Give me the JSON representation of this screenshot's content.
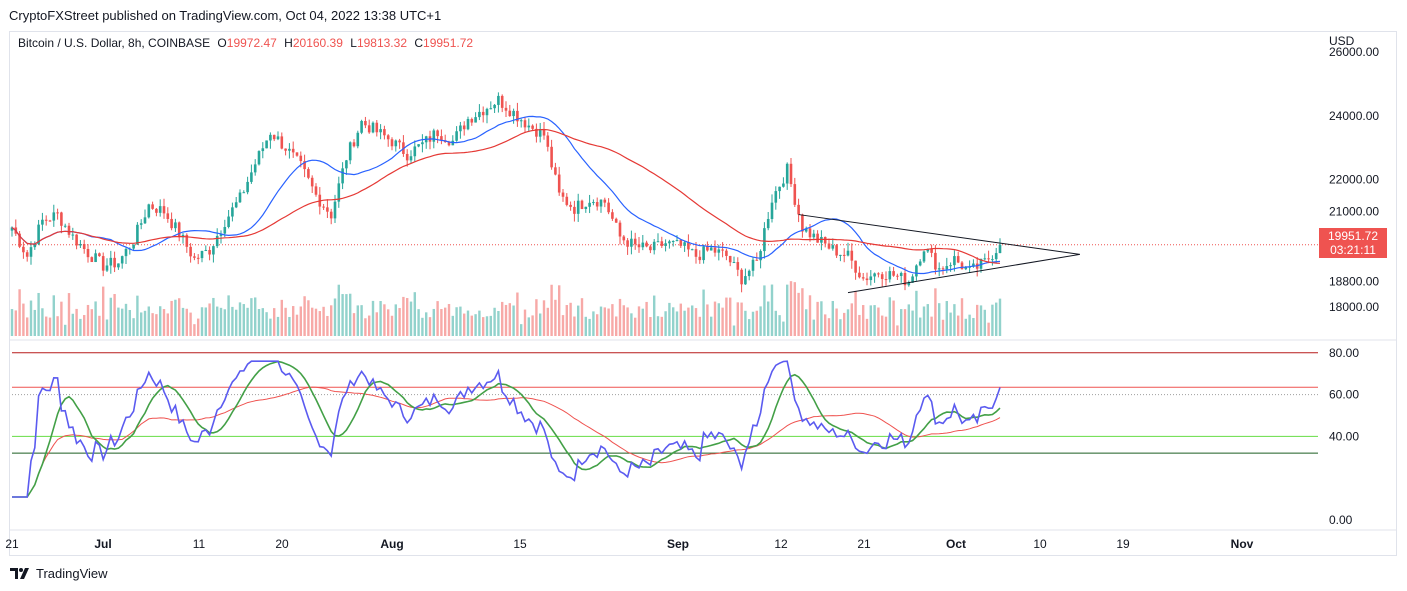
{
  "header": {
    "publish_line": "CryptoFXStreet published on TradingView.com, Oct 04, 2022 13:38 UTC+1"
  },
  "legend": {
    "symbol": "Bitcoin / U.S. Dollar, 8h, COINBASE",
    "o_label": "O",
    "o_value": "19972.47",
    "h_label": "H",
    "h_value": "20160.39",
    "l_label": "L",
    "l_value": "19813.32",
    "c_label": "C",
    "c_value": "19951.72"
  },
  "currency": "USD",
  "last_price": {
    "price": "19951.72",
    "countdown": "03:21:11"
  },
  "brand": {
    "name": "TradingView"
  },
  "colors": {
    "up": "#26a69a",
    "down": "#ef5350",
    "sma_fast": "#2962ff",
    "sma_slow": "#e53935",
    "rsi": "#5b5bf0",
    "rsi_signal": "#43a047",
    "rsi_slow": "#ef5350",
    "level_high": "#b71c1c",
    "level_mid": "#66dd44",
    "level_low": "#1b5e20"
  },
  "chart_data": [
    {
      "type": "candlestick",
      "title": "Bitcoin / U.S. Dollar, 8h, COINBASE",
      "price_ticks": [
        "26000.00",
        "24000.00",
        "22000.00",
        "21000.00",
        "19951.72",
        "18800.00",
        "18000.00"
      ],
      "x_ticks": [
        "21",
        "Jul",
        "11",
        "20",
        "Aug",
        "15",
        "Sep",
        "12",
        "21",
        "Oct",
        "10",
        "19",
        "Nov"
      ],
      "ylim": [
        17600,
        26000
      ],
      "close_path": [
        {
          "t": 0,
          "c": 20500
        },
        {
          "t": 4,
          "c": 19600
        },
        {
          "t": 8,
          "c": 20700
        },
        {
          "t": 12,
          "c": 20900
        },
        {
          "t": 16,
          "c": 20200
        },
        {
          "t": 20,
          "c": 19700
        },
        {
          "t": 24,
          "c": 19300
        },
        {
          "t": 28,
          "c": 19400
        },
        {
          "t": 32,
          "c": 20100
        },
        {
          "t": 36,
          "c": 21200
        },
        {
          "t": 40,
          "c": 21000
        },
        {
          "t": 44,
          "c": 20300
        },
        {
          "t": 48,
          "c": 19500
        },
        {
          "t": 52,
          "c": 19800
        },
        {
          "t": 56,
          "c": 20700
        },
        {
          "t": 60,
          "c": 21400
        },
        {
          "t": 64,
          "c": 22500
        },
        {
          "t": 68,
          "c": 23500
        },
        {
          "t": 72,
          "c": 23000
        },
        {
          "t": 76,
          "c": 22400
        },
        {
          "t": 80,
          "c": 21500
        },
        {
          "t": 84,
          "c": 20900
        },
        {
          "t": 88,
          "c": 22700
        },
        {
          "t": 92,
          "c": 23800
        },
        {
          "t": 96,
          "c": 23500
        },
        {
          "t": 100,
          "c": 23200
        },
        {
          "t": 104,
          "c": 22800
        },
        {
          "t": 108,
          "c": 23100
        },
        {
          "t": 112,
          "c": 23500
        },
        {
          "t": 116,
          "c": 23200
        },
        {
          "t": 120,
          "c": 23900
        },
        {
          "t": 124,
          "c": 24200
        },
        {
          "t": 128,
          "c": 24500
        },
        {
          "t": 132,
          "c": 24100
        },
        {
          "t": 136,
          "c": 23700
        },
        {
          "t": 140,
          "c": 23400
        },
        {
          "t": 144,
          "c": 21500
        },
        {
          "t": 148,
          "c": 21100
        },
        {
          "t": 152,
          "c": 21400
        },
        {
          "t": 156,
          "c": 21300
        },
        {
          "t": 160,
          "c": 20200
        },
        {
          "t": 164,
          "c": 19900
        },
        {
          "t": 168,
          "c": 19800
        },
        {
          "t": 172,
          "c": 20000
        },
        {
          "t": 176,
          "c": 19900
        },
        {
          "t": 180,
          "c": 19600
        },
        {
          "t": 184,
          "c": 19800
        },
        {
          "t": 188,
          "c": 19600
        },
        {
          "t": 192,
          "c": 18900
        },
        {
          "t": 196,
          "c": 19400
        },
        {
          "t": 200,
          "c": 21400
        },
        {
          "t": 204,
          "c": 22300
        },
        {
          "t": 208,
          "c": 20500
        },
        {
          "t": 212,
          "c": 20100
        },
        {
          "t": 216,
          "c": 19800
        },
        {
          "t": 220,
          "c": 19600
        },
        {
          "t": 224,
          "c": 18900
        },
        {
          "t": 228,
          "c": 19100
        },
        {
          "t": 232,
          "c": 19000
        },
        {
          "t": 236,
          "c": 18800
        },
        {
          "t": 240,
          "c": 19900
        },
        {
          "t": 244,
          "c": 19200
        },
        {
          "t": 248,
          "c": 19500
        },
        {
          "t": 252,
          "c": 19100
        },
        {
          "t": 256,
          "c": 19400
        },
        {
          "t": 260,
          "c": 19951.72
        }
      ],
      "triangle": {
        "upper": [
          {
            "t": 207,
            "p": 20900
          },
          {
            "t": 281,
            "p": 19650
          }
        ],
        "lower": [
          {
            "t": 220,
            "p": 18450
          },
          {
            "t": 281,
            "p": 19650
          }
        ]
      }
    },
    {
      "type": "line",
      "title": "RSI",
      "y_ticks": [
        "80.00",
        "60.00",
        "40.00",
        "0.00"
      ],
      "ylim": [
        0,
        80
      ],
      "levels": [
        80,
        63.5,
        60,
        40,
        32
      ]
    }
  ]
}
